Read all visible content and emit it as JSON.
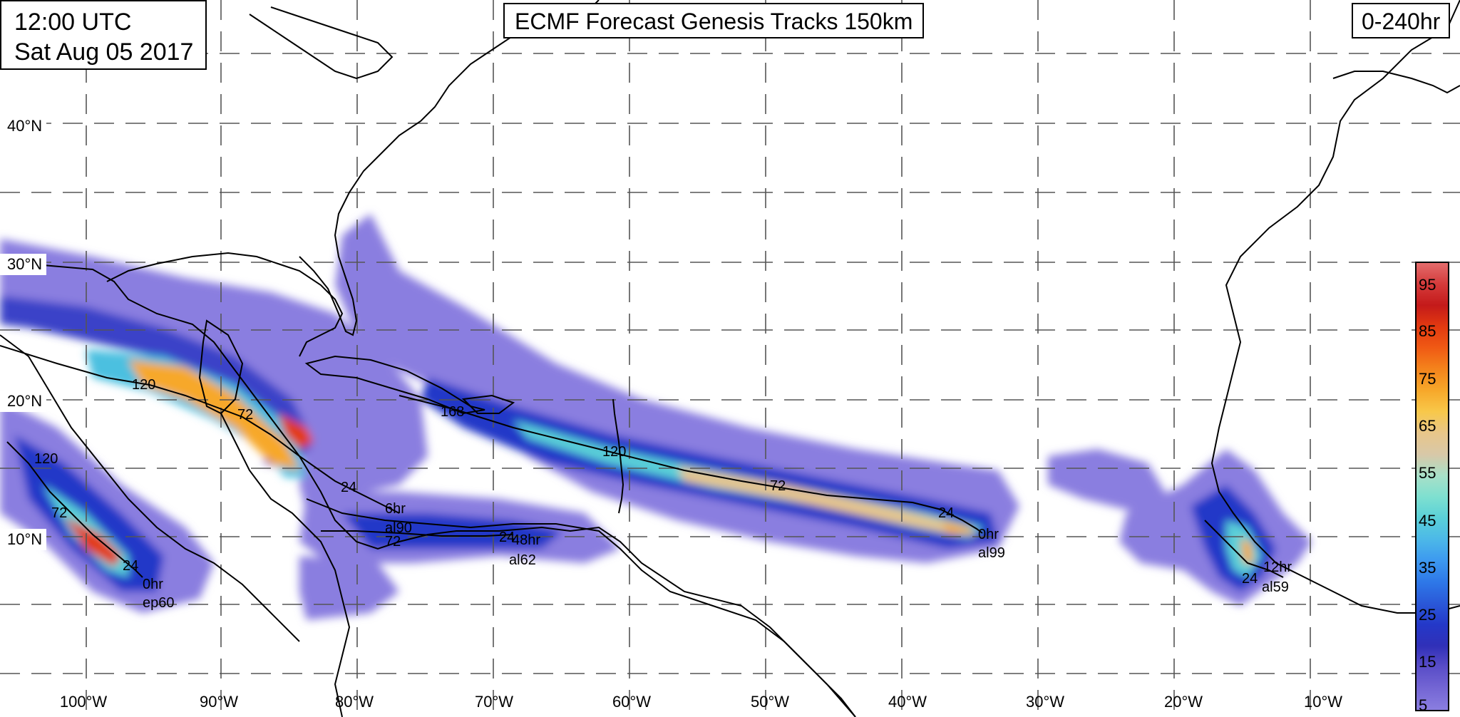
{
  "header": {
    "time_line": "12:00 UTC",
    "date_line": "Sat Aug 05 2017",
    "title": "ECMF Forecast Genesis Tracks 150km",
    "range": "0-240hr"
  },
  "lat_labels": [
    "40°N",
    "30°N",
    "20°N",
    "10°N"
  ],
  "lon_labels": [
    "100°W",
    "90°W",
    "80°W",
    "70°W",
    "60°W",
    "50°W",
    "40°W",
    "30°W",
    "20°W",
    "10°W"
  ],
  "colorbar": {
    "labels": [
      "95",
      "85",
      "75",
      "65",
      "55",
      "45",
      "35",
      "25",
      "15",
      "5"
    ],
    "colors": [
      "#e46c6c",
      "#d43a3a",
      "#c41a1a",
      "#e33a10",
      "#f05a14",
      "#f4841c",
      "#f7a82a",
      "#f8c84a",
      "#e8c68a",
      "#d8c8a8",
      "#a8e0c8",
      "#7ee0d0",
      "#5ad0d8",
      "#4cb8e8",
      "#3c98f0",
      "#2e78e8",
      "#2a58d8",
      "#2438c8",
      "#3030b8",
      "#5a4ec8",
      "#7466d4",
      "#8a7ee0"
    ]
  },
  "storm_tracks": [
    {
      "id": "ep60",
      "start_label": "0hr",
      "hour_labels": [
        "24",
        "72",
        "120"
      ]
    },
    {
      "id": "al90",
      "start_label": "6hr",
      "hour_labels": [
        "24",
        "72",
        "120"
      ]
    },
    {
      "id": "al62",
      "start_label": "48hr",
      "hour_labels": [
        "24",
        "72"
      ]
    },
    {
      "id": "al99",
      "start_label": "0hr",
      "hour_labels": [
        "24",
        "72",
        "120",
        "168"
      ]
    },
    {
      "id": "al59",
      "start_label": "12hr",
      "hour_labels": [
        "24"
      ]
    }
  ],
  "map_extent": {
    "lon": [
      -107,
      1
    ],
    "lat": [
      0,
      47
    ]
  }
}
